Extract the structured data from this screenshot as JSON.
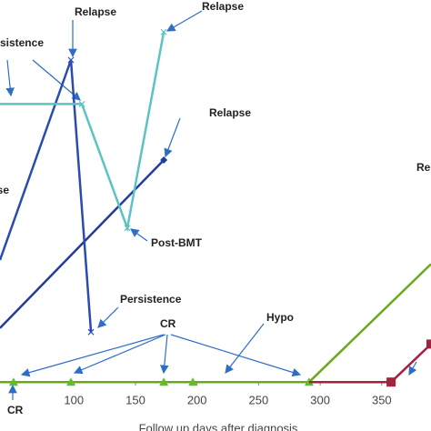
{
  "chart_data": {
    "type": "line",
    "x_label": "Follow up days after diagnosis",
    "xlim": [
      40,
      390
    ],
    "ylim": [
      0,
      100
    ],
    "xticks": [
      100,
      150,
      200,
      250,
      300,
      350
    ],
    "series": [
      {
        "color": "#1f3c9e",
        "x": [
          40,
          173
        ],
        "values": [
          18,
          60
        ],
        "marker": "diamond"
      },
      {
        "color": "#2a4bb0",
        "x": [
          40,
          97.6,
          113.9
        ],
        "values": [
          35,
          85,
          17
        ],
        "marker": "x"
      },
      {
        "color": "#5cc3c3",
        "x": [
          40,
          106.5,
          143.4,
          173
        ],
        "values": [
          74,
          74,
          43,
          92
        ],
        "marker": "x"
      },
      {
        "color": "#6aa81e",
        "x": [
          40,
          51,
          97.6,
          173,
          196.6,
          291,
          390
        ],
        "values": [
          4.5,
          4.5,
          4.5,
          4.5,
          4.5,
          4.5,
          34
        ],
        "marker": "triangle"
      },
      {
        "color": "#a3213c",
        "x": [
          291,
          357.6,
          390
        ],
        "values": [
          4.5,
          4.5,
          14
        ],
        "marker": "square"
      }
    ],
    "annotations": [
      "Relapse",
      "Relapse",
      "Persistence",
      "Relapse",
      "Relapse",
      "Post-BMT",
      "Persistence",
      "CR",
      "Hypo",
      "Relapse",
      "CR"
    ]
  }
}
